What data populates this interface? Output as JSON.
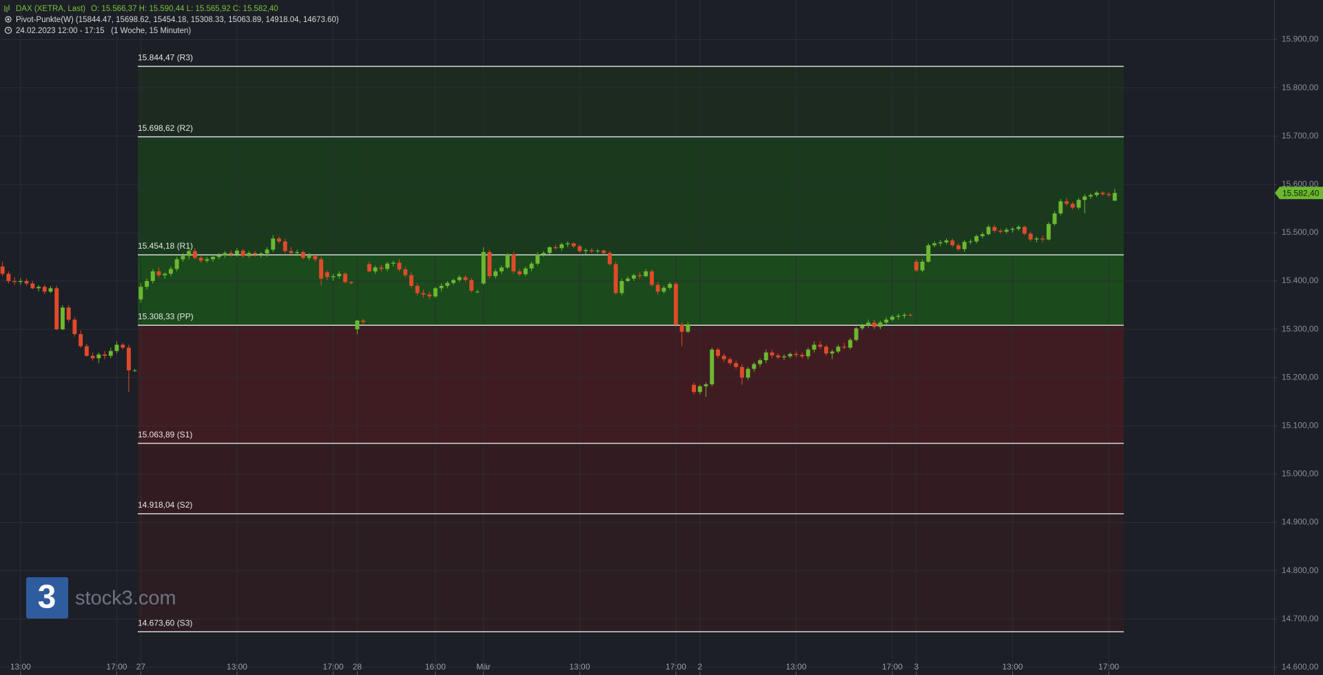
{
  "chart_data": {
    "type": "candlestick",
    "header": {
      "instrument": "DAX (XETRA, Last)",
      "ohlc": "O: 15.566,37  H: 15.590,44  L: 15.565,92  C: 15.582,40",
      "indicator": "Pivot-Punkte(W)  (15844.47,  15698.62,  15454.18,  15308.33,  15063.89,  14918.04,  14673.60)",
      "period": "24.02.2023 12:00 - 17:15   (1 Woche, 15 Minuten)"
    },
    "watermark_logo": "3",
    "watermark": "stock3.com",
    "up_color": "#6cb830",
    "down_color": "#e04a2a",
    "grid": true,
    "open": [
      15430,
      15415,
      15400,
      15398,
      15400,
      15395,
      15385,
      15388,
      15378,
      15385,
      15300,
      15345,
      15320,
      15290,
      15265,
      15245,
      15240,
      15248,
      15245,
      15255,
      15268,
      15262,
      15215,
      15362,
      15388,
      15400,
      15420,
      15412,
      15415,
      15425,
      15445,
      15452,
      15462,
      15448,
      15442,
      15445,
      15450,
      15453,
      15458,
      15455,
      15463,
      15452,
      15458,
      15455,
      15457,
      15465,
      15488,
      15482,
      15462,
      15458,
      15460,
      15448,
      15452,
      15445,
      15418,
      15408,
      15410,
      15415,
      15398,
      15300,
      15318,
      15435,
      15420,
      15428,
      15425,
      15436,
      15438,
      15424,
      15412,
      15390,
      15375,
      15372,
      15368,
      15385,
      15390,
      15396,
      15402,
      15408,
      15402,
      15378,
      15395,
      15460,
      15410,
      15420,
      15428,
      15455,
      15420,
      15414,
      15426,
      15436,
      15455,
      15458,
      15470,
      15468,
      15476,
      15478,
      15472,
      15462,
      15464,
      15462,
      15463,
      15458,
      15435,
      15375,
      15400,
      15405,
      15412,
      15410,
      15420,
      15392,
      15378,
      15386,
      15394,
      15310,
      15295,
      15185,
      15170,
      15182,
      15186,
      15258,
      15245,
      15238,
      15230,
      15222,
      15200,
      15218,
      15228,
      15236,
      15252,
      15246,
      15242,
      15244,
      15249,
      15247,
      15244,
      15258,
      15268,
      15264,
      15250,
      15254,
      15264,
      15262,
      15278,
      15302,
      15308,
      15314,
      15305,
      15314,
      15320,
      15326,
      15328,
      15330,
      15440,
      15422,
      15440,
      15474,
      15478,
      15480,
      15484,
      15474,
      15466,
      15481,
      15482,
      15493,
      15497,
      15512,
      15504,
      15502,
      15506,
      15508,
      15512,
      15498,
      15486,
      15488,
      15486,
      15518,
      15540,
      15565,
      15560,
      15552,
      15568,
      15575,
      15578,
      15583,
      15580,
      15566.37
    ],
    "high": [
      15440,
      15420,
      15408,
      15406,
      15405,
      15400,
      15392,
      15392,
      15390,
      15390,
      15350,
      15350,
      15325,
      15298,
      15270,
      15252,
      15252,
      15255,
      15262,
      15275,
      15272,
      15268,
      15218,
      15395,
      15405,
      15425,
      15428,
      15418,
      15430,
      15450,
      15458,
      15470,
      15468,
      15452,
      15450,
      15455,
      15458,
      15462,
      15463,
      15468,
      15466,
      15462,
      15462,
      15460,
      15470,
      15495,
      15492,
      15488,
      15470,
      15465,
      15463,
      15458,
      15456,
      15450,
      15422,
      15415,
      15420,
      15418,
      15400,
      15320,
      15322,
      15440,
      15432,
      15433,
      15440,
      15442,
      15445,
      15430,
      15418,
      15395,
      15382,
      15378,
      15388,
      15395,
      15400,
      15405,
      15412,
      15412,
      15406,
      15382,
      15470,
      15465,
      15425,
      15432,
      15458,
      15460,
      15425,
      15430,
      15440,
      15460,
      15462,
      15472,
      15475,
      15480,
      15482,
      15480,
      15476,
      15468,
      15468,
      15466,
      15465,
      15462,
      15440,
      15405,
      15410,
      15415,
      15418,
      15425,
      15424,
      15398,
      15390,
      15398,
      15398,
      15315,
      15315,
      15190,
      15185,
      15190,
      15262,
      15262,
      15250,
      15242,
      15235,
      15228,
      15222,
      15232,
      15240,
      15258,
      15258,
      15250,
      15248,
      15252,
      15254,
      15252,
      15262,
      15275,
      15275,
      15268,
      15258,
      15268,
      15272,
      15282,
      15305,
      15312,
      15320,
      15320,
      15318,
      15325,
      15330,
      15332,
      15334,
      15333,
      15445,
      15445,
      15478,
      15482,
      15485,
      15488,
      15488,
      15478,
      15485,
      15486,
      15496,
      15502,
      15516,
      15516,
      15508,
      15510,
      15512,
      15516,
      15515,
      15502,
      15492,
      15494,
      15522,
      15545,
      15570,
      15572,
      15564,
      15572,
      15580,
      15582,
      15586,
      15586,
      15584,
      15590.44
    ],
    "low": [
      15410,
      15395,
      15392,
      15392,
      15390,
      15383,
      15378,
      15373,
      15375,
      15298,
      15298,
      15315,
      15285,
      15262,
      15243,
      15235,
      15230,
      15238,
      15240,
      15250,
      15258,
      15170,
      15212,
      15355,
      15382,
      15395,
      15408,
      15405,
      15410,
      15420,
      15440,
      15445,
      15445,
      15438,
      15438,
      15440,
      15445,
      15448,
      15450,
      15450,
      15448,
      15448,
      15450,
      15448,
      15450,
      15460,
      15478,
      15458,
      15455,
      15452,
      15445,
      15443,
      15440,
      15390,
      15402,
      15400,
      15405,
      15395,
      15393,
      15290,
      15310,
      15418,
      15415,
      15420,
      15420,
      15430,
      15420,
      15408,
      15385,
      15370,
      15365,
      15362,
      15365,
      15378,
      15385,
      15392,
      15398,
      15398,
      15376,
      15375,
      15392,
      15405,
      15405,
      15415,
      15425,
      15415,
      15410,
      15410,
      15420,
      15432,
      15450,
      15455,
      15465,
      15462,
      15470,
      15468,
      15458,
      15455,
      15458,
      15458,
      15455,
      15432,
      15372,
      15370,
      15398,
      15400,
      15405,
      15408,
      15388,
      15372,
      15374,
      15382,
      15305,
      15265,
      15292,
      15165,
      15165,
      15160,
      15182,
      15240,
      15232,
      15225,
      15218,
      15185,
      15195,
      15212,
      15222,
      15230,
      15240,
      15238,
      15236,
      15240,
      15242,
      15240,
      15238,
      15252,
      15260,
      15245,
      15238,
      15250,
      15258,
      15258,
      15275,
      15298,
      15303,
      15300,
      15300,
      15310,
      15316,
      15320,
      15322,
      15326,
      15418,
      15418,
      15438,
      15470,
      15472,
      15476,
      15470,
      15462,
      15460,
      15476,
      15478,
      15488,
      15494,
      15500,
      15498,
      15498,
      15500,
      15504,
      15495,
      15482,
      15480,
      15480,
      15484,
      15515,
      15536,
      15555,
      15548,
      15548,
      15540,
      15570,
      15574,
      15576,
      15574,
      15565.92
    ],
    "close": [
      15415,
      15400,
      15398,
      15400,
      15395,
      15385,
      15388,
      15378,
      15385,
      15300,
      15345,
      15320,
      15290,
      15265,
      15245,
      15240,
      15248,
      15245,
      15255,
      15268,
      15262,
      15215,
      15215,
      15388,
      15400,
      15420,
      15412,
      15415,
      15425,
      15445,
      15452,
      15462,
      15448,
      15442,
      15445,
      15450,
      15453,
      15458,
      15455,
      15463,
      15452,
      15458,
      15455,
      15457,
      15465,
      15488,
      15482,
      15462,
      15458,
      15460,
      15448,
      15452,
      15445,
      15405,
      15408,
      15410,
      15415,
      15398,
      15396,
      15318,
      15315,
      15420,
      15428,
      15425,
      15436,
      15438,
      15424,
      15412,
      15390,
      15375,
      15372,
      15368,
      15385,
      15390,
      15396,
      15402,
      15408,
      15402,
      15380,
      15378,
      15460,
      15410,
      15420,
      15428,
      15455,
      15420,
      15414,
      15426,
      15436,
      15455,
      15458,
      15470,
      15468,
      15476,
      15478,
      15472,
      15462,
      15464,
      15462,
      15463,
      15458,
      15435,
      15375,
      15400,
      15405,
      15412,
      15410,
      15420,
      15392,
      15378,
      15386,
      15394,
      15310,
      15295,
      15310,
      15170,
      15182,
      15186,
      15258,
      15245,
      15238,
      15230,
      15222,
      15200,
      15218,
      15228,
      15236,
      15252,
      15246,
      15242,
      15244,
      15249,
      15247,
      15244,
      15258,
      15268,
      15264,
      15250,
      15254,
      15264,
      15262,
      15278,
      15302,
      15308,
      15314,
      15305,
      15314,
      15320,
      15326,
      15328,
      15330,
      15329,
      15422,
      15440,
      15474,
      15478,
      15480,
      15484,
      15474,
      15466,
      15481,
      15482,
      15493,
      15497,
      15512,
      15504,
      15502,
      15506,
      15508,
      15512,
      15498,
      15486,
      15488,
      15486,
      15518,
      15540,
      15565,
      15560,
      15552,
      15568,
      15575,
      15578,
      15583,
      15580,
      15578,
      15582.4
    ],
    "pivots": [
      {
        "value": 15844.47,
        "label": "15.844,47 (R3)"
      },
      {
        "value": 15698.62,
        "label": "15.698,62 (R2)"
      },
      {
        "value": 15454.18,
        "label": "15.454,18 (R1)"
      },
      {
        "value": 15308.33,
        "label": "15.308,33 (PP)"
      },
      {
        "value": 15063.89,
        "label": "15.063,89 (S1)"
      },
      {
        "value": 14918.04,
        "label": "14.918,04 (S2)"
      },
      {
        "value": 14673.6,
        "label": "14.673,60 (S3)"
      }
    ],
    "zone_colors": [
      "#1d2a20",
      "#1a3a1e",
      "#1b4a1c",
      "#3f1c21",
      "#331c21",
      "#2b1d22"
    ],
    "last_price": {
      "value": 15582.4,
      "label": "15.582,40"
    },
    "xlim": [
      -0.42,
      211.5
    ],
    "xticks": [
      {
        "value": 3,
        "label": "13:00"
      },
      {
        "value": 19,
        "label": "17:00"
      },
      {
        "value": 23,
        "label": "27"
      },
      {
        "value": 39,
        "label": "13:00"
      },
      {
        "value": 55,
        "label": "17:00"
      },
      {
        "value": 59,
        "label": "28"
      },
      {
        "value": 72,
        "label": "16:00"
      },
      {
        "value": 80,
        "label": "Mär"
      },
      {
        "value": 96,
        "label": "13:00"
      },
      {
        "value": 112,
        "label": "17:00"
      },
      {
        "value": 116,
        "label": "2"
      },
      {
        "value": 132,
        "label": "13:00"
      },
      {
        "value": 148,
        "label": "17:00"
      },
      {
        "value": 152,
        "label": "3"
      },
      {
        "value": 168,
        "label": "13:00"
      },
      {
        "value": 184,
        "label": "17:00"
      }
    ],
    "ylim": [
      14584,
      15982
    ],
    "yticks": [
      {
        "value": 14600,
        "label": "14.600,00"
      },
      {
        "value": 14700,
        "label": "14.700,00"
      },
      {
        "value": 14800,
        "label": "14.800,00"
      },
      {
        "value": 14900,
        "label": "14.900,00"
      },
      {
        "value": 15000,
        "label": "15.000,00"
      },
      {
        "value": 15100,
        "label": "15.100,00"
      },
      {
        "value": 15200,
        "label": "15.200,00"
      },
      {
        "value": 15300,
        "label": "15.300,00"
      },
      {
        "value": 15400,
        "label": "15.400,00"
      },
      {
        "value": 15500,
        "label": "15.500,00"
      },
      {
        "value": 15600,
        "label": "15.600,00"
      },
      {
        "value": 15700,
        "label": "15.700,00"
      },
      {
        "value": 15800,
        "label": "15.800,00"
      },
      {
        "value": 15900,
        "label": "15.900,00"
      }
    ]
  }
}
